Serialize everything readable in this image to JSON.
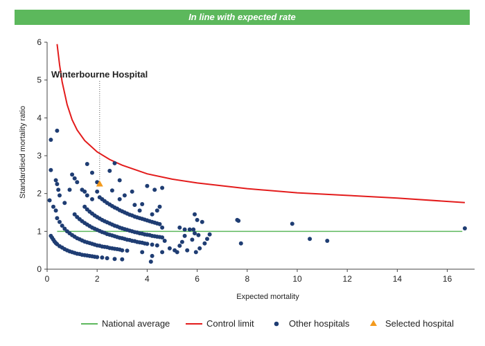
{
  "banner": {
    "text": "In line with expected rate"
  },
  "colors": {
    "banner_bg": "#5cb85c",
    "national_average": "#5cb85c",
    "control_limit": "#e31b1b",
    "other_hospitals": "#1f3d73",
    "selected_hospital": "#f39a1d"
  },
  "chart_data": {
    "type": "scatter",
    "title": "",
    "xlabel": "Expected mortality",
    "ylabel": "Standardised mortality ratio",
    "xlim": [
      0,
      17
    ],
    "ylim": [
      0,
      6
    ],
    "x_ticks": [
      0,
      2,
      4,
      6,
      8,
      10,
      12,
      14,
      16
    ],
    "y_ticks": [
      0,
      1,
      2,
      3,
      4,
      5,
      6
    ],
    "grid": false,
    "legend_position": "bottom",
    "annotation": {
      "text": "Winterbourne Hospital",
      "x": 2.1
    },
    "national_average": {
      "name": "National average",
      "y": 1.0,
      "x_range": [
        0.4,
        16.6
      ]
    },
    "control_limit": {
      "name": "Control limit",
      "x": [
        0.4,
        0.5,
        0.6,
        0.8,
        1.0,
        1.2,
        1.5,
        2.0,
        2.5,
        3.0,
        4.0,
        5.0,
        6.0,
        8.0,
        10.0,
        12.0,
        14.0,
        16.7
      ],
      "y": [
        5.95,
        5.4,
        4.95,
        4.35,
        3.95,
        3.68,
        3.4,
        3.1,
        2.9,
        2.75,
        2.52,
        2.38,
        2.28,
        2.13,
        2.02,
        1.95,
        1.88,
        1.76
      ]
    },
    "other_hospitals": {
      "name": "Other hospitals",
      "points": [
        [
          0.15,
          0.88
        ],
        [
          0.2,
          0.83
        ],
        [
          0.25,
          0.78
        ],
        [
          0.3,
          0.73
        ],
        [
          0.35,
          0.69
        ],
        [
          0.4,
          0.66
        ],
        [
          0.5,
          0.61
        ],
        [
          0.6,
          0.57
        ],
        [
          0.7,
          0.53
        ],
        [
          0.8,
          0.5
        ],
        [
          0.9,
          0.47
        ],
        [
          1.0,
          0.45
        ],
        [
          1.1,
          0.43
        ],
        [
          1.2,
          0.41
        ],
        [
          1.3,
          0.4
        ],
        [
          1.4,
          0.38
        ],
        [
          1.5,
          0.37
        ],
        [
          1.6,
          0.36
        ],
        [
          1.7,
          0.35
        ],
        [
          1.8,
          0.34
        ],
        [
          1.9,
          0.33
        ],
        [
          2.0,
          0.32
        ],
        [
          2.2,
          0.31
        ],
        [
          2.4,
          0.29
        ],
        [
          2.7,
          0.27
        ],
        [
          3.0,
          0.26
        ],
        [
          0.4,
          1.35
        ],
        [
          0.5,
          1.25
        ],
        [
          0.6,
          1.15
        ],
        [
          0.7,
          1.07
        ],
        [
          0.8,
          1.0
        ],
        [
          0.9,
          0.95
        ],
        [
          1.0,
          0.9
        ],
        [
          1.1,
          0.86
        ],
        [
          1.2,
          0.82
        ],
        [
          1.3,
          0.79
        ],
        [
          1.4,
          0.76
        ],
        [
          1.5,
          0.73
        ],
        [
          1.6,
          0.71
        ],
        [
          1.7,
          0.69
        ],
        [
          1.8,
          0.67
        ],
        [
          1.9,
          0.65
        ],
        [
          2.0,
          0.63
        ],
        [
          2.1,
          0.62
        ],
        [
          2.2,
          0.6
        ],
        [
          2.3,
          0.59
        ],
        [
          2.4,
          0.58
        ],
        [
          2.5,
          0.56
        ],
        [
          2.6,
          0.55
        ],
        [
          2.7,
          0.54
        ],
        [
          2.8,
          0.53
        ],
        [
          2.9,
          0.52
        ],
        [
          3.0,
          0.5
        ],
        [
          3.2,
          0.49
        ],
        [
          1.1,
          1.45
        ],
        [
          1.2,
          1.38
        ],
        [
          1.3,
          1.32
        ],
        [
          1.4,
          1.27
        ],
        [
          1.5,
          1.22
        ],
        [
          1.6,
          1.18
        ],
        [
          1.7,
          1.14
        ],
        [
          1.8,
          1.1
        ],
        [
          1.9,
          1.07
        ],
        [
          2.0,
          1.04
        ],
        [
          2.1,
          1.01
        ],
        [
          2.2,
          0.98
        ],
        [
          2.3,
          0.96
        ],
        [
          2.4,
          0.93
        ],
        [
          2.5,
          0.91
        ],
        [
          2.6,
          0.89
        ],
        [
          2.7,
          0.87
        ],
        [
          2.8,
          0.85
        ],
        [
          2.9,
          0.83
        ],
        [
          3.0,
          0.82
        ],
        [
          3.1,
          0.8
        ],
        [
          3.2,
          0.78
        ],
        [
          3.3,
          0.77
        ],
        [
          3.4,
          0.75
        ],
        [
          3.5,
          0.74
        ],
        [
          3.6,
          0.72
        ],
        [
          3.7,
          0.71
        ],
        [
          3.8,
          0.7
        ],
        [
          3.9,
          0.68
        ],
        [
          4.0,
          0.67
        ],
        [
          4.2,
          0.65
        ],
        [
          4.4,
          0.63
        ],
        [
          1.5,
          1.65
        ],
        [
          1.6,
          1.58
        ],
        [
          1.7,
          1.52
        ],
        [
          1.8,
          1.47
        ],
        [
          1.9,
          1.42
        ],
        [
          2.0,
          1.38
        ],
        [
          2.1,
          1.34
        ],
        [
          2.2,
          1.3
        ],
        [
          2.3,
          1.27
        ],
        [
          2.4,
          1.24
        ],
        [
          2.5,
          1.21
        ],
        [
          2.6,
          1.18
        ],
        [
          2.7,
          1.15
        ],
        [
          2.8,
          1.13
        ],
        [
          2.9,
          1.1
        ],
        [
          3.0,
          1.08
        ],
        [
          3.1,
          1.06
        ],
        [
          3.2,
          1.04
        ],
        [
          3.3,
          1.02
        ],
        [
          3.4,
          1.0
        ],
        [
          3.5,
          0.98
        ],
        [
          3.6,
          0.97
        ],
        [
          3.7,
          0.95
        ],
        [
          3.8,
          0.94
        ],
        [
          3.9,
          0.92
        ],
        [
          4.0,
          0.91
        ],
        [
          4.1,
          0.9
        ],
        [
          4.2,
          0.88
        ],
        [
          4.3,
          0.87
        ],
        [
          4.4,
          0.86
        ],
        [
          4.5,
          0.85
        ],
        [
          4.6,
          0.84
        ],
        [
          2.1,
          1.9
        ],
        [
          2.2,
          1.85
        ],
        [
          2.3,
          1.8
        ],
        [
          2.4,
          1.75
        ],
        [
          2.5,
          1.71
        ],
        [
          2.6,
          1.67
        ],
        [
          2.7,
          1.63
        ],
        [
          2.8,
          1.6
        ],
        [
          2.9,
          1.56
        ],
        [
          3.0,
          1.53
        ],
        [
          3.1,
          1.5
        ],
        [
          3.2,
          1.47
        ],
        [
          3.3,
          1.44
        ],
        [
          3.4,
          1.42
        ],
        [
          3.5,
          1.39
        ],
        [
          3.6,
          1.37
        ],
        [
          3.7,
          1.35
        ],
        [
          3.8,
          1.33
        ],
        [
          3.9,
          1.31
        ],
        [
          4.0,
          1.29
        ],
        [
          4.1,
          1.27
        ],
        [
          4.2,
          1.25
        ],
        [
          4.3,
          1.23
        ],
        [
          4.4,
          1.21
        ],
        [
          4.5,
          1.19
        ],
        [
          0.15,
          3.42
        ],
        [
          0.4,
          3.66
        ],
        [
          0.15,
          2.62
        ],
        [
          0.35,
          2.35
        ],
        [
          0.4,
          2.25
        ],
        [
          0.45,
          2.1
        ],
        [
          0.5,
          1.95
        ],
        [
          0.25,
          1.65
        ],
        [
          0.35,
          1.55
        ],
        [
          0.1,
          1.82
        ],
        [
          0.7,
          1.75
        ],
        [
          0.9,
          2.1
        ],
        [
          1.0,
          2.5
        ],
        [
          1.1,
          2.4
        ],
        [
          1.2,
          2.3
        ],
        [
          1.4,
          2.1
        ],
        [
          1.5,
          2.05
        ],
        [
          1.6,
          2.78
        ],
        [
          1.6,
          1.95
        ],
        [
          1.8,
          2.55
        ],
        [
          1.8,
          1.85
        ],
        [
          2.0,
          2.05
        ],
        [
          2.0,
          2.3
        ],
        [
          2.5,
          2.6
        ],
        [
          2.7,
          2.8
        ],
        [
          2.9,
          2.35
        ],
        [
          2.6,
          2.08
        ],
        [
          2.9,
          1.85
        ],
        [
          3.1,
          1.95
        ],
        [
          3.4,
          2.05
        ],
        [
          3.5,
          1.7
        ],
        [
          3.7,
          1.55
        ],
        [
          3.8,
          1.72
        ],
        [
          4.0,
          2.2
        ],
        [
          4.3,
          2.1
        ],
        [
          4.2,
          1.45
        ],
        [
          4.4,
          1.55
        ],
        [
          4.5,
          1.65
        ],
        [
          4.6,
          2.15
        ],
        [
          4.6,
          1.1
        ],
        [
          4.7,
          0.75
        ],
        [
          4.2,
          0.35
        ],
        [
          4.15,
          0.2
        ],
        [
          3.8,
          0.45
        ],
        [
          4.6,
          0.45
        ],
        [
          4.9,
          0.55
        ],
        [
          5.1,
          0.5
        ],
        [
          5.2,
          0.45
        ],
        [
          5.3,
          0.62
        ],
        [
          5.3,
          1.1
        ],
        [
          5.4,
          0.72
        ],
        [
          5.5,
          0.88
        ],
        [
          5.5,
          1.05
        ],
        [
          5.6,
          0.5
        ],
        [
          5.7,
          1.05
        ],
        [
          5.8,
          0.78
        ],
        [
          5.85,
          1.05
        ],
        [
          5.9,
          0.95
        ],
        [
          5.95,
          0.45
        ],
        [
          5.9,
          1.45
        ],
        [
          6.0,
          1.3
        ],
        [
          6.05,
          0.9
        ],
        [
          6.1,
          0.55
        ],
        [
          6.2,
          1.25
        ],
        [
          6.3,
          0.68
        ],
        [
          6.4,
          0.8
        ],
        [
          6.5,
          0.92
        ],
        [
          7.6,
          1.3
        ],
        [
          7.65,
          1.28
        ],
        [
          7.75,
          0.68
        ],
        [
          9.8,
          1.2
        ],
        [
          10.5,
          0.8
        ],
        [
          11.2,
          0.75
        ],
        [
          16.7,
          1.08
        ]
      ]
    },
    "selected_hospital": {
      "name": "Selected hospital",
      "x": 2.1,
      "y": 2.25
    }
  },
  "legend": {
    "items": [
      {
        "label": "National average"
      },
      {
        "label": "Control limit"
      },
      {
        "label": "Other hospitals"
      },
      {
        "label": "Selected hospital"
      }
    ]
  }
}
